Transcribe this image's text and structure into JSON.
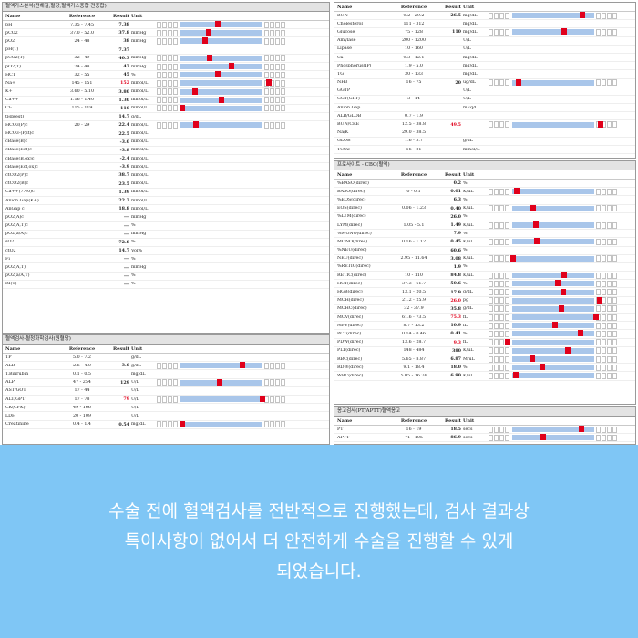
{
  "caption": {
    "line1": "수술 전에 혈액검사를 전반적으로 진행했는데, 검사 결과상",
    "line2": "특이사항이 없어서 더 안전하게 수술을 진행할 수 있게",
    "line3": "되었습니다."
  },
  "columns": {
    "name": "Name",
    "ref": "Reference",
    "result": "Result",
    "unit": "Unit"
  },
  "colors": {
    "marker": "#e0001b",
    "range_bar": "#a9c6ea",
    "caption_bg": "#7fc6f5"
  },
  "panels": [
    {
      "id": "blood-gas",
      "title": "혈액가스분석(전해질,혈장,혈액가스종합 전종합)",
      "rows": [
        {
          "name": "pH",
          "ref": "7.35 - 7.45",
          "result": "7.38",
          "unit": "",
          "marker": 0.45
        },
        {
          "name": "pCO2",
          "ref": "37.0 - 52.0",
          "result": "37.8",
          "unit": "mmHg",
          "marker": 0.34
        },
        {
          "name": "pO2",
          "ref": "24 - 48",
          "result": "38",
          "unit": "mmHg",
          "marker": 0.3
        },
        {
          "name": "pH(T)",
          "ref": "",
          "result": "7.37",
          "unit": "",
          "marker": null
        },
        {
          "name": "pCO2(T)",
          "ref": "32 - 49",
          "result": "40.3",
          "unit": "mmHg",
          "marker": 0.35
        },
        {
          "name": "pO2(T)",
          "ref": "24 - 48",
          "result": "42",
          "unit": "mmHg",
          "marker": 0.62
        },
        {
          "name": "HCT",
          "ref": "32 - 55",
          "result": "45",
          "unit": "%",
          "marker": 0.45
        },
        {
          "name": "Na+",
          "ref": "145 - 151",
          "result": "152",
          "unit": "mmol/L",
          "marker": 1.08,
          "high": true
        },
        {
          "name": "K+",
          "ref": "3.60 - 5.10",
          "result": "3.80",
          "unit": "mmol/L",
          "marker": 0.18
        },
        {
          "name": "Ca++",
          "ref": "1.16 - 1.40",
          "result": "1.30",
          "unit": "mmol/L",
          "marker": 0.5
        },
        {
          "name": "Cl-",
          "ref": "115 - 119",
          "result": "110",
          "unit": "mmol/L",
          "marker": 0.02
        },
        {
          "name": "tHb(est)",
          "ref": "",
          "result": "14.7",
          "unit": "g/dL",
          "marker": null
        },
        {
          "name": "HCO3(P)c",
          "ref": "20 - 29",
          "result": "22.4",
          "unit": "mmol/L",
          "marker": 0.19
        },
        {
          "name": "HCO3-(P,st)c",
          "ref": "",
          "result": "22.5",
          "unit": "mmol/L",
          "marker": null
        },
        {
          "name": "cBase(B)c",
          "ref": "",
          "result": "-3.0",
          "unit": "mmol/L",
          "marker": null
        },
        {
          "name": "cBase(Ecf)c",
          "ref": "",
          "result": "-3.8",
          "unit": "mmol/L",
          "marker": null
        },
        {
          "name": "cBase(B,ox)c",
          "ref": "",
          "result": "-2.4",
          "unit": "mmol/L",
          "marker": null
        },
        {
          "name": "cBase(Ecf,ox)c",
          "ref": "",
          "result": "-3.9",
          "unit": "mmol/L",
          "marker": null
        },
        {
          "name": "ctCO2(P)c",
          "ref": "",
          "result": "38.7",
          "unit": "mmol/L",
          "marker": null
        },
        {
          "name": "ctCO2(B)c",
          "ref": "",
          "result": "23.5",
          "unit": "mmol/L",
          "marker": null
        },
        {
          "name": "Ca++(7.40)c",
          "ref": "",
          "result": "1.39",
          "unit": "mmol/L",
          "marker": null
        },
        {
          "name": "Anion Gap(K+)",
          "ref": "",
          "result": "22.2",
          "unit": "mmol/L",
          "marker": null
        },
        {
          "name": "AnGap c",
          "ref": "",
          "result": "18.8",
          "unit": "mmol/L",
          "marker": null
        },
        {
          "name": "pO2(A)c",
          "ref": "",
          "result": "---",
          "unit": "mmHg",
          "marker": null
        },
        {
          "name": "pO2(A,T)c",
          "ref": "",
          "result": "---",
          "unit": "%",
          "marker": null
        },
        {
          "name": "pO2(a/A)c",
          "ref": "",
          "result": "---",
          "unit": "mmHg",
          "marker": null
        },
        {
          "name": "sO2",
          "ref": "",
          "result": "72.8",
          "unit": "%",
          "marker": null
        },
        {
          "name": "ctO2",
          "ref": "",
          "result": "14.7",
          "unit": "Vol%",
          "marker": null
        },
        {
          "name": "Fi",
          "ref": "",
          "result": "---",
          "unit": "%",
          "marker": null
        },
        {
          "name": "pO2(A,T)",
          "ref": "",
          "result": "---",
          "unit": "mmHg",
          "marker": null
        },
        {
          "name": "pO2(a/A,T)",
          "ref": "",
          "result": "---",
          "unit": "%",
          "marker": null
        },
        {
          "name": "RI(T)",
          "ref": "",
          "result": "---",
          "unit": "%",
          "marker": null
        }
      ]
    },
    {
      "id": "chem-left",
      "title": "혈액검사-혈청화학검사(원혈당)",
      "rows": [
        {
          "name": "TP",
          "ref": "5.0 - 7.2",
          "result": "",
          "unit": "g/dL",
          "marker": null
        },
        {
          "name": "ALB",
          "ref": "2.6 - 4.0",
          "result": "3.6",
          "unit": "g/dL",
          "marker": 0.76
        },
        {
          "name": "T.Bilirubin",
          "ref": "0.1 - 0.5",
          "result": "",
          "unit": "mg/dL",
          "marker": null
        },
        {
          "name": "ALP",
          "ref": "47 - 254",
          "result": "129",
          "unit": "U/L",
          "marker": 0.48
        },
        {
          "name": "AST/GOT",
          "ref": "17 - 44",
          "result": "",
          "unit": "U/L",
          "marker": null
        },
        {
          "name": "ALT/GPT",
          "ref": "17 - 78",
          "result": "79",
          "unit": "U/L",
          "marker": 1.0,
          "high": true
        },
        {
          "name": "CK(CPK)",
          "ref": "49 - 166",
          "result": "",
          "unit": "U/L",
          "marker": null
        },
        {
          "name": "LDH",
          "ref": "20 - 109",
          "result": "",
          "unit": "U/L",
          "marker": null
        },
        {
          "name": "Creatinine",
          "ref": "0.4 - 1.4",
          "result": "0.54",
          "unit": "mg/dL",
          "marker": 0.02
        }
      ]
    },
    {
      "id": "chem-right",
      "title": "",
      "rows": [
        {
          "name": "BUN",
          "ref": "9.2 - 29.2",
          "result": "26.5",
          "unit": "mg/dL",
          "marker": 0.86
        },
        {
          "name": "Cholesterol",
          "ref": "111 - 312",
          "result": "",
          "unit": "mg/dL",
          "marker": null
        },
        {
          "name": "Glucose",
          "ref": "75 - 128",
          "result": "110",
          "unit": "mg/dL",
          "marker": 0.63
        },
        {
          "name": "Amylase",
          "ref": "200 - 1200",
          "result": "",
          "unit": "U/L",
          "marker": null
        },
        {
          "name": "Lipase",
          "ref": "10 - 160",
          "result": "",
          "unit": "U/L",
          "marker": null
        },
        {
          "name": "Ca",
          "ref": "9.3 - 12.1",
          "result": "",
          "unit": "mg/dL",
          "marker": null
        },
        {
          "name": "Phosphorus(IP)",
          "ref": "1.9 - 5.0",
          "result": "",
          "unit": "mg/dL",
          "marker": null
        },
        {
          "name": "TG",
          "ref": "30 - 133",
          "result": "",
          "unit": "mg/dL",
          "marker": null
        },
        {
          "name": "NH3",
          "ref": "16 - 75",
          "result": "20",
          "unit": "ug/dL",
          "marker": 0.08
        },
        {
          "name": "GGTP",
          "ref": "",
          "result": "",
          "unit": "U/L",
          "marker": null
        },
        {
          "name": "GGT(GPT)",
          "ref": "3 - 14",
          "result": "",
          "unit": "U/L",
          "marker": null
        },
        {
          "name": "Anion Gap",
          "ref": "",
          "result": "",
          "unit": "mEq/L",
          "marker": null
        },
        {
          "name": "ALB/GLOB",
          "ref": "0.7 - 1.9",
          "result": "",
          "unit": "",
          "marker": null
        },
        {
          "name": "BUN/CRE",
          "ref": "12.5 - 38.8",
          "result": "49.5",
          "unit": "",
          "marker": 1.08,
          "high": true
        },
        {
          "name": "Na/K",
          "ref": "29.0 - 38.5",
          "result": "",
          "unit": "",
          "marker": null
        },
        {
          "name": "GLOB",
          "ref": "1.6 - 3.7",
          "result": "",
          "unit": "g/dL",
          "marker": null
        },
        {
          "name": "TCO2",
          "ref": "16 - 21",
          "result": "",
          "unit": "mmol/L",
          "marker": null
        }
      ]
    },
    {
      "id": "cbc",
      "title": "프로사이트 - CBC(혈액)",
      "rows": [
        {
          "name": "%BASO(direc)",
          "ref": "",
          "result": "0.2",
          "unit": "%",
          "marker": null
        },
        {
          "name": "BASO(direc)",
          "ref": "0 - 0.1",
          "result": "0.01",
          "unit": "K/uL",
          "marker": 0.05
        },
        {
          "name": "%EOS(direc)",
          "ref": "",
          "result": "6.3",
          "unit": "%",
          "marker": null
        },
        {
          "name": "EOS(direc)",
          "ref": "0.06 - 1.23",
          "result": "0.40",
          "unit": "K/uL",
          "marker": 0.25
        },
        {
          "name": "%LYM(direc)",
          "ref": "",
          "result": "26.0",
          "unit": "%",
          "marker": null
        },
        {
          "name": "LYM(direc)",
          "ref": "1.05 - 5.1",
          "result": "1.49",
          "unit": "K/uL",
          "marker": 0.29
        },
        {
          "name": "%MONO(direc)",
          "ref": "",
          "result": "7.9",
          "unit": "%",
          "marker": null
        },
        {
          "name": "MONO(direc)",
          "ref": "0.16 - 1.12",
          "result": "0.45",
          "unit": "K/uL",
          "marker": 0.3
        },
        {
          "name": "%NEU(direc)",
          "ref": "",
          "result": "60.6",
          "unit": "%",
          "marker": null
        },
        {
          "name": "NEU(direc)",
          "ref": "2.95 - 11.64",
          "result": "3.08",
          "unit": "K/uL",
          "marker": 0.01
        },
        {
          "name": "%RETIC(direc)",
          "ref": "",
          "result": "1.9",
          "unit": "%",
          "marker": null
        },
        {
          "name": "RETIC(direc)",
          "ref": "10 - 110",
          "result": "84.8",
          "unit": "K/uL",
          "marker": 0.63
        },
        {
          "name": "HCT(direc)",
          "ref": "37.3 - 61.7",
          "result": "50.6",
          "unit": "%",
          "marker": 0.56
        },
        {
          "name": "HGB(direc)",
          "ref": "13.1 - 20.5",
          "result": "17.9",
          "unit": "g/dL",
          "marker": 0.62
        },
        {
          "name": "MCH(direc)",
          "ref": "21.2 - 25.9",
          "result": "26.0",
          "unit": "pg",
          "marker": 1.07,
          "high": true
        },
        {
          "name": "MCHC(direc)",
          "ref": "32 - 37.9",
          "result": "35.8",
          "unit": "g/dL",
          "marker": 0.6
        },
        {
          "name": "MCV(direc)",
          "ref": "61.6 - 73.5",
          "result": "75.3",
          "unit": "fL",
          "marker": 1.02,
          "high": true
        },
        {
          "name": "MPV(direc)",
          "ref": "8.7 - 13.2",
          "result": "10.9",
          "unit": "fL",
          "marker": 0.52
        },
        {
          "name": "PCT(direc)",
          "ref": "0.14 - 0.46",
          "result": "0.41",
          "unit": "%",
          "marker": 0.83
        },
        {
          "name": "PDW(direc)",
          "ref": "13.6 - 28.7",
          "result": "9.3",
          "unit": "fL",
          "marker": -0.06,
          "high": true
        },
        {
          "name": "PLT(direc)",
          "ref": "148 - 484",
          "result": "380",
          "unit": "K/uL",
          "marker": 0.68
        },
        {
          "name": "RBC(direc)",
          "ref": "5.65 - 8.87",
          "result": "6.87",
          "unit": "M/uL",
          "marker": 0.24
        },
        {
          "name": "RDW(direc)",
          "ref": "9.1 - 18.4",
          "result": "18.0",
          "unit": "%",
          "marker": 0.37
        },
        {
          "name": "WBC(direc)",
          "ref": "5.05 - 16.76",
          "result": "6.90",
          "unit": "K/uL",
          "marker": 0.04
        }
      ]
    },
    {
      "id": "coag",
      "title": "응고검사(PT/APTT)혈액응고",
      "rows": [
        {
          "name": "PT",
          "ref": "16 - 19",
          "result": "18.5",
          "unit": "secs",
          "marker": 0.84
        },
        {
          "name": "APTT",
          "ref": "71 - 105",
          "result": "86.9",
          "unit": "secs",
          "marker": 0.38
        }
      ]
    }
  ]
}
